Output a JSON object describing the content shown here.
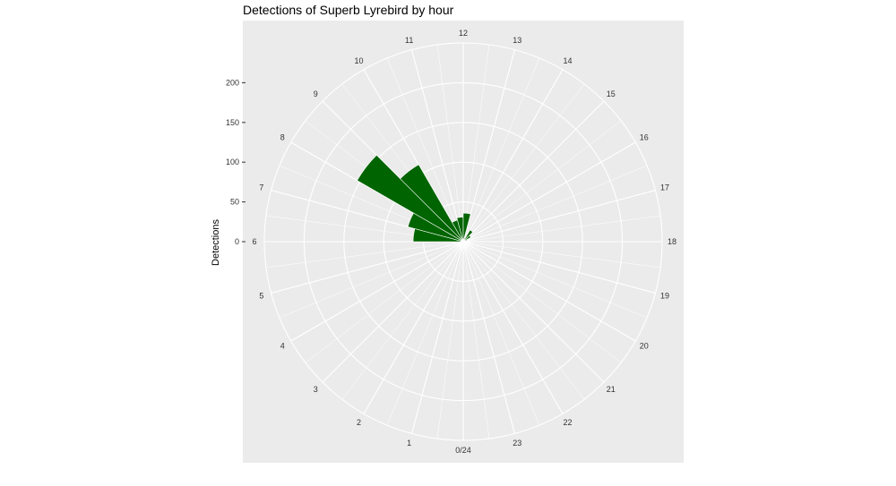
{
  "chart_data": {
    "type": "bar",
    "coord": "polar",
    "title": "Detections of Superb Lyrebird by hour",
    "xlabel": "",
    "ylabel": "Detections",
    "categories": [
      "0/24",
      "1",
      "2",
      "3",
      "4",
      "5",
      "6",
      "7",
      "8",
      "9",
      "10",
      "11",
      "12",
      "13",
      "14",
      "15",
      "16",
      "17",
      "18",
      "19",
      "20",
      "21",
      "22",
      "23"
    ],
    "values": [
      0,
      0,
      0,
      0,
      0,
      0,
      63,
      72,
      154,
      112,
      28,
      31,
      36,
      5,
      17,
      11,
      5,
      0,
      0,
      0,
      0,
      0,
      0,
      0
    ],
    "y_ticks": [
      0,
      50,
      100,
      150,
      200
    ],
    "ylim": [
      0,
      250
    ],
    "grid": true,
    "bar_color": "#006400",
    "panel_color": "#EBEBEB"
  }
}
